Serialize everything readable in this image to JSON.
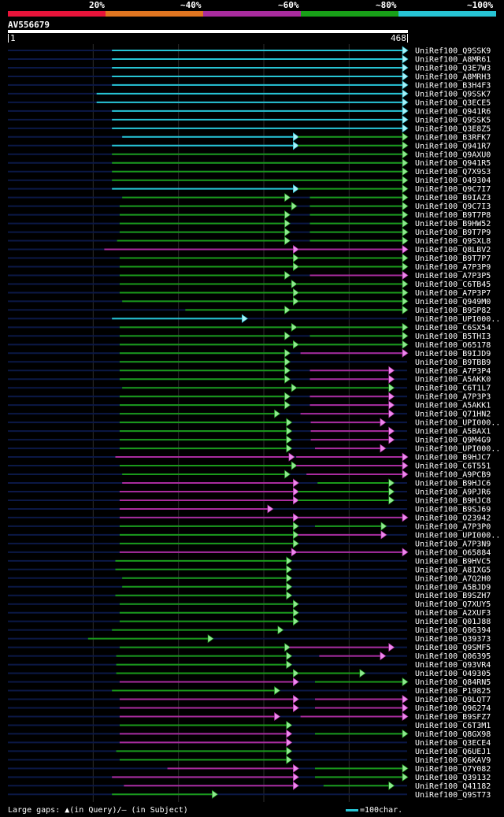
{
  "legend": {
    "labels": [
      "20%",
      "~40%",
      "~60%",
      "~80%",
      "~100%"
    ],
    "colors": [
      "#e8143a",
      "#e07520",
      "#a92c9e",
      "#18a018",
      "#27c4d4"
    ]
  },
  "query": {
    "name": "AV556679",
    "start_label": "1",
    "end_label": "468",
    "length": 468
  },
  "colors": {
    "cyan": "#27c4d4",
    "green": "#1a9a1a",
    "magenta": "#a92c9e",
    "navy": "#0b1846",
    "arrow_fill": "#8fe88f",
    "arrow_fill_magenta": "#ee88ee",
    "arrow_fill_cyan": "#a8f0f8",
    "grid": "#2c2c2c"
  },
  "footer": {
    "note": "Large gaps: ▲(in Query)/– (in Subject)",
    "scale": "=100char."
  },
  "chart_data": {
    "type": "alignment",
    "query_length": 468,
    "hits": [
      {
        "name": "UniRef100_Q9SSK9",
        "segments": [
          [
            122,
            468,
            "cyan"
          ]
        ]
      },
      {
        "name": "UniRef100_A8MR61",
        "segments": [
          [
            122,
            468,
            "cyan"
          ]
        ]
      },
      {
        "name": "UniRef100_Q3E7W3",
        "segments": [
          [
            122,
            468,
            "cyan"
          ]
        ]
      },
      {
        "name": "UniRef100_A8MRH3",
        "segments": [
          [
            122,
            468,
            "cyan"
          ]
        ]
      },
      {
        "name": "UniRef100_B3H4F3",
        "segments": [
          [
            122,
            468,
            "cyan"
          ]
        ]
      },
      {
        "name": "UniRef100_Q9SSK7",
        "segments": [
          [
            104,
            468,
            "cyan"
          ]
        ]
      },
      {
        "name": "UniRef100_Q3ECE5",
        "segments": [
          [
            104,
            468,
            "cyan"
          ]
        ]
      },
      {
        "name": "UniRef100_Q941R6",
        "segments": [
          [
            122,
            468,
            "cyan"
          ]
        ]
      },
      {
        "name": "UniRef100_Q9SSK5",
        "segments": [
          [
            122,
            468,
            "cyan"
          ]
        ]
      },
      {
        "name": "UniRef100_Q3E8Z5",
        "segments": [
          [
            122,
            468,
            "cyan"
          ]
        ]
      },
      {
        "name": "UniRef100_B3RFK7",
        "segments": [
          [
            134,
            340,
            "cyan"
          ],
          [
            340,
            468,
            "green"
          ]
        ]
      },
      {
        "name": "UniRef100_Q941R7",
        "segments": [
          [
            122,
            340,
            "cyan"
          ],
          [
            340,
            468,
            "green"
          ]
        ]
      },
      {
        "name": "UniRef100_Q9AXU0",
        "segments": [
          [
            122,
            468,
            "green"
          ]
        ]
      },
      {
        "name": "UniRef100_Q941R5",
        "segments": [
          [
            122,
            468,
            "green"
          ]
        ]
      },
      {
        "name": "UniRef100_Q7X9S3",
        "segments": [
          [
            122,
            468,
            "green"
          ]
        ]
      },
      {
        "name": "UniRef100_O49304",
        "segments": [
          [
            122,
            468,
            "green"
          ]
        ]
      },
      {
        "name": "UniRef100_Q9C7I7",
        "segments": [
          [
            122,
            340,
            "cyan"
          ],
          [
            340,
            468,
            "green"
          ]
        ]
      },
      {
        "name": "UniRef100_B9IAZ3",
        "segments": [
          [
            134,
            330,
            "green"
          ],
          [
            354,
            468,
            "green"
          ]
        ]
      },
      {
        "name": "UniRef100_Q9C7I3",
        "segments": [
          [
            131,
            338,
            "green"
          ],
          [
            354,
            468,
            "green"
          ]
        ]
      },
      {
        "name": "UniRef100_B9T7P8",
        "segments": [
          [
            131,
            330,
            "green"
          ],
          [
            354,
            468,
            "green"
          ]
        ]
      },
      {
        "name": "UniRef100_B9HW52",
        "segments": [
          [
            131,
            330,
            "green"
          ],
          [
            354,
            468,
            "green"
          ]
        ]
      },
      {
        "name": "UniRef100_B9T7P9",
        "segments": [
          [
            131,
            330,
            "green"
          ],
          [
            354,
            468,
            "green"
          ]
        ]
      },
      {
        "name": "UniRef100_Q9SXL8",
        "segments": [
          [
            128,
            330,
            "green"
          ],
          [
            354,
            468,
            "green"
          ]
        ]
      },
      {
        "name": "UniRef100_Q8LBV2",
        "segments": [
          [
            113,
            340,
            "magenta"
          ],
          [
            340,
            468,
            "magenta"
          ]
        ]
      },
      {
        "name": "UniRef100_B9T7P7",
        "segments": [
          [
            131,
            340,
            "green"
          ],
          [
            340,
            468,
            "green"
          ]
        ]
      },
      {
        "name": "UniRef100_A7P3P9",
        "segments": [
          [
            131,
            340,
            "green"
          ],
          [
            340,
            468,
            "green"
          ]
        ]
      },
      {
        "name": "UniRef100_A7P3P5",
        "segments": [
          [
            131,
            330,
            "green"
          ],
          [
            354,
            468,
            "magenta"
          ]
        ]
      },
      {
        "name": "UniRef100_C6TB45",
        "segments": [
          [
            131,
            338,
            "green"
          ],
          [
            338,
            468,
            "green"
          ]
        ]
      },
      {
        "name": "UniRef100_A7P3P7",
        "segments": [
          [
            131,
            340,
            "green"
          ],
          [
            340,
            468,
            "green"
          ]
        ]
      },
      {
        "name": "UniRef100_Q949M0",
        "segments": [
          [
            134,
            340,
            "green"
          ],
          [
            340,
            468,
            "green"
          ]
        ]
      },
      {
        "name": "UniRef100_B9SP82",
        "segments": [
          [
            208,
            330,
            "green"
          ],
          [
            330,
            468,
            "green"
          ]
        ]
      },
      {
        "name": "UniRef100_UPI000..",
        "segments": [
          [
            122,
            280,
            "cyan"
          ]
        ]
      },
      {
        "name": "UniRef100_C6SX54",
        "segments": [
          [
            131,
            338,
            "green"
          ],
          [
            338,
            468,
            "green"
          ]
        ]
      },
      {
        "name": "UniRef100_B5THI3",
        "segments": [
          [
            131,
            330,
            "green"
          ],
          [
            354,
            468,
            "green"
          ]
        ]
      },
      {
        "name": "UniRef100_O65178",
        "segments": [
          [
            131,
            340,
            "green"
          ],
          [
            340,
            468,
            "green"
          ]
        ]
      },
      {
        "name": "UniRef100_B9IJD9",
        "segments": [
          [
            131,
            330,
            "green"
          ],
          [
            343,
            468,
            "magenta"
          ]
        ]
      },
      {
        "name": "UniRef100_B9TBB9",
        "segments": [
          [
            131,
            330,
            "green"
          ]
        ]
      },
      {
        "name": "UniRef100_A7P3P4",
        "segments": [
          [
            131,
            330,
            "green"
          ],
          [
            354,
            452,
            "magenta"
          ]
        ]
      },
      {
        "name": "UniRef100_A5AKK0",
        "segments": [
          [
            131,
            330,
            "green"
          ],
          [
            354,
            452,
            "magenta"
          ]
        ]
      },
      {
        "name": "UniRef100_C6T1L7",
        "segments": [
          [
            134,
            338,
            "green"
          ],
          [
            338,
            452,
            "green"
          ]
        ]
      },
      {
        "name": "UniRef100_A7P3P3",
        "segments": [
          [
            131,
            330,
            "green"
          ],
          [
            354,
            452,
            "magenta"
          ]
        ]
      },
      {
        "name": "UniRef100_A5AKK1",
        "segments": [
          [
            131,
            330,
            "green"
          ],
          [
            354,
            452,
            "magenta"
          ]
        ]
      },
      {
        "name": "UniRef100_Q71HN2",
        "segments": [
          [
            131,
            318,
            "green"
          ],
          [
            343,
            452,
            "magenta"
          ]
        ]
      },
      {
        "name": "UniRef100_UPI000..",
        "segments": [
          [
            131,
            332,
            "green"
          ],
          [
            355,
            442,
            "magenta"
          ]
        ]
      },
      {
        "name": "UniRef100_A5BAX1",
        "segments": [
          [
            131,
            332,
            "green"
          ],
          [
            355,
            452,
            "magenta"
          ]
        ]
      },
      {
        "name": "UniRef100_Q9M4G9",
        "segments": [
          [
            131,
            332,
            "green"
          ],
          [
            355,
            452,
            "magenta"
          ]
        ]
      },
      {
        "name": "UniRef100_UPI000..",
        "segments": [
          [
            131,
            332,
            "green"
          ],
          [
            360,
            442,
            "magenta"
          ]
        ]
      },
      {
        "name": "UniRef100_B9HJC7",
        "segments": [
          [
            126,
            335,
            "magenta"
          ],
          [
            338,
            468,
            "magenta"
          ]
        ]
      },
      {
        "name": "UniRef100_C6T551",
        "segments": [
          [
            131,
            338,
            "green"
          ],
          [
            338,
            468,
            "magenta"
          ]
        ]
      },
      {
        "name": "UniRef100_A9PCB9",
        "segments": [
          [
            134,
            330,
            "green"
          ],
          [
            350,
            468,
            "magenta"
          ]
        ]
      },
      {
        "name": "UniRef100_B9HJC6",
        "segments": [
          [
            134,
            340,
            "magenta"
          ],
          [
            363,
            452,
            "green"
          ]
        ]
      },
      {
        "name": "UniRef100_A9PJR6",
        "segments": [
          [
            131,
            340,
            "magenta"
          ],
          [
            340,
            452,
            "green"
          ]
        ]
      },
      {
        "name": "UniRef100_B9HJC8",
        "segments": [
          [
            131,
            340,
            "magenta"
          ],
          [
            340,
            452,
            "green"
          ]
        ]
      },
      {
        "name": "UniRef100_B9SJ69",
        "segments": [
          [
            131,
            310,
            "magenta"
          ]
        ]
      },
      {
        "name": "UniRef100_O23942",
        "segments": [
          [
            131,
            340,
            "magenta"
          ],
          [
            340,
            468,
            "magenta"
          ]
        ]
      },
      {
        "name": "UniRef100_A7P3P0",
        "segments": [
          [
            131,
            340,
            "green"
          ],
          [
            360,
            443,
            "green"
          ]
        ]
      },
      {
        "name": "UniRef100_UPI000..",
        "segments": [
          [
            131,
            340,
            "green"
          ],
          [
            340,
            443,
            "magenta"
          ]
        ]
      },
      {
        "name": "UniRef100_A7P3N9",
        "segments": [
          [
            131,
            340,
            "green"
          ]
        ]
      },
      {
        "name": "UniRef100_O65884",
        "segments": [
          [
            131,
            338,
            "magenta"
          ],
          [
            338,
            468,
            "magenta"
          ]
        ]
      },
      {
        "name": "UniRef100_B9HVC5",
        "segments": [
          [
            126,
            332,
            "green"
          ]
        ]
      },
      {
        "name": "UniRef100_A8IXG5",
        "segments": [
          [
            126,
            332,
            "green"
          ]
        ]
      },
      {
        "name": "UniRef100_A7Q2H0",
        "segments": [
          [
            134,
            332,
            "green"
          ]
        ]
      },
      {
        "name": "UniRef100_A5BJD9",
        "segments": [
          [
            134,
            332,
            "green"
          ]
        ]
      },
      {
        "name": "UniRef100_B9SZH7",
        "segments": [
          [
            126,
            332,
            "green"
          ]
        ]
      },
      {
        "name": "UniRef100_Q7XUY5",
        "segments": [
          [
            131,
            340,
            "green"
          ]
        ]
      },
      {
        "name": "UniRef100_A2XUF3",
        "segments": [
          [
            131,
            340,
            "green"
          ]
        ]
      },
      {
        "name": "UniRef100_Q01J88",
        "segments": [
          [
            131,
            340,
            "green"
          ]
        ]
      },
      {
        "name": "UniRef100_Q06394",
        "segments": [
          [
            122,
            322,
            "green"
          ]
        ]
      },
      {
        "name": "UniRef100_Q39373",
        "segments": [
          [
            94,
            240,
            "green"
          ]
        ]
      },
      {
        "name": "UniRef100_Q9SMF5",
        "segments": [
          [
            131,
            330,
            "green"
          ],
          [
            330,
            452,
            "magenta"
          ]
        ]
      },
      {
        "name": "UniRef100_Q06395",
        "segments": [
          [
            127,
            332,
            "green"
          ],
          [
            365,
            442,
            "magenta"
          ]
        ]
      },
      {
        "name": "UniRef100_Q93VR4",
        "segments": [
          [
            127,
            332,
            "green"
          ]
        ]
      },
      {
        "name": "UniRef100_O49305",
        "segments": [
          [
            127,
            340,
            "green"
          ],
          [
            340,
            418,
            "green"
          ]
        ]
      },
      {
        "name": "UniRef100_Q84RN5",
        "segments": [
          [
            131,
            340,
            "magenta"
          ],
          [
            360,
            468,
            "green"
          ]
        ]
      },
      {
        "name": "UniRef100_P19825",
        "segments": [
          [
            122,
            318,
            "green"
          ]
        ]
      },
      {
        "name": "UniRef100_Q9LQT7",
        "segments": [
          [
            131,
            340,
            "magenta"
          ],
          [
            360,
            468,
            "magenta"
          ]
        ]
      },
      {
        "name": "UniRef100_Q96274",
        "segments": [
          [
            131,
            340,
            "magenta"
          ],
          [
            360,
            468,
            "magenta"
          ]
        ]
      },
      {
        "name": "UniRef100_B9SFZ7",
        "segments": [
          [
            131,
            318,
            "magenta"
          ],
          [
            343,
            468,
            "magenta"
          ]
        ]
      },
      {
        "name": "UniRef100_C6T3M1",
        "segments": [
          [
            131,
            332,
            "green"
          ]
        ]
      },
      {
        "name": "UniRef100_Q8GX98",
        "segments": [
          [
            131,
            332,
            "magenta"
          ],
          [
            360,
            468,
            "green"
          ]
        ]
      },
      {
        "name": "UniRef100_Q3ECE4",
        "segments": [
          [
            131,
            332,
            "magenta"
          ]
        ]
      },
      {
        "name": "UniRef100_Q6UEJ1",
        "segments": [
          [
            127,
            332,
            "green"
          ]
        ]
      },
      {
        "name": "UniRef100_Q6KAV9",
        "segments": [
          [
            131,
            332,
            "green"
          ]
        ]
      },
      {
        "name": "UniRef100_Q7Y082",
        "segments": [
          [
            187,
            340,
            "magenta"
          ],
          [
            360,
            468,
            "green"
          ]
        ]
      },
      {
        "name": "UniRef100_Q39132",
        "segments": [
          [
            122,
            340,
            "magenta"
          ],
          [
            360,
            468,
            "green"
          ]
        ]
      },
      {
        "name": "UniRef100_Q41182",
        "segments": [
          [
            136,
            340,
            "magenta"
          ],
          [
            370,
            452,
            "green"
          ]
        ]
      },
      {
        "name": "UniRef100_Q9ST73",
        "segments": [
          [
            122,
            245,
            "green"
          ]
        ]
      }
    ]
  }
}
